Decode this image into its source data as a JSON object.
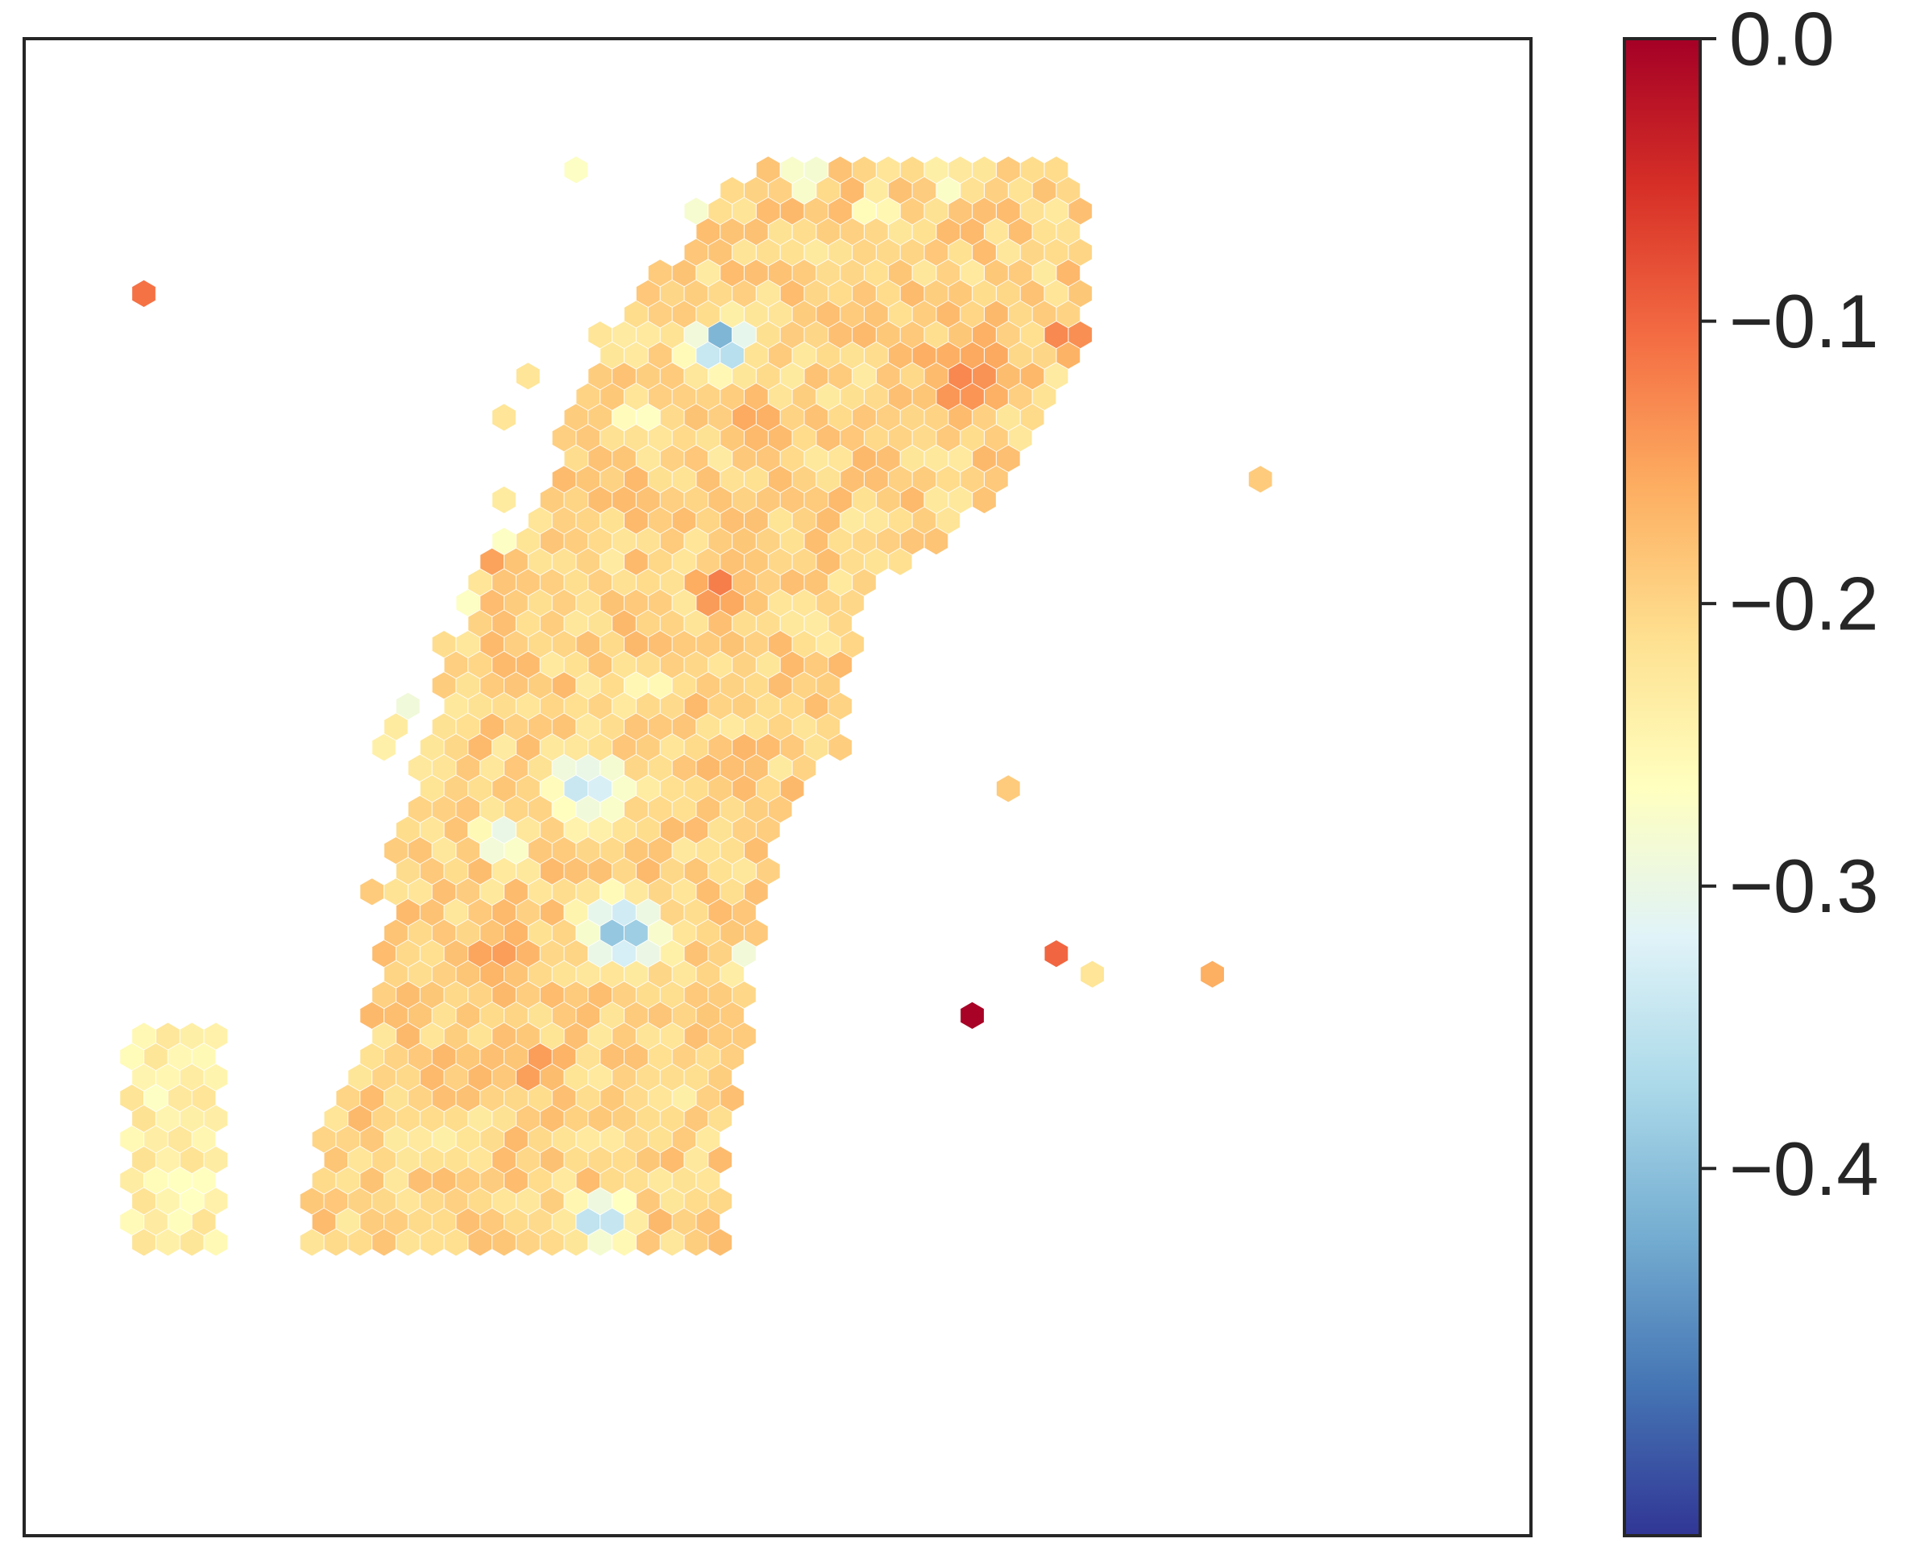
{
  "chart_data": {
    "type": "heatmap",
    "subtype": "hexbin spatial scatter",
    "title": "",
    "xlabel": "",
    "ylabel": "",
    "axes_ticks_visible": false,
    "grid": false,
    "legend": "none",
    "colormap": {
      "name": "RdYlBu_r",
      "stops": [
        "#313695",
        "#4575b4",
        "#74add1",
        "#abd9e9",
        "#e0f3f8",
        "#ffffbf",
        "#fee090",
        "#fdae61",
        "#f46d43",
        "#d73027",
        "#a50026"
      ]
    },
    "colorbar": {
      "placement": "right",
      "vmin": -0.53,
      "vmax": 0.0,
      "ticks": [
        {
          "value": 0.0,
          "label": "0.0"
        },
        {
          "value": -0.1,
          "label": "−0.1"
        },
        {
          "value": -0.2,
          "label": "−0.2"
        },
        {
          "value": -0.3,
          "label": "−0.3"
        },
        {
          "value": -0.4,
          "label": "−0.4"
        }
      ]
    },
    "field": {
      "background_value": -0.2,
      "spot_grid": {
        "columns": 57,
        "rows": 64
      },
      "tissue_outline": [
        [
          28,
          3
        ],
        [
          41,
          3
        ],
        [
          42,
          6
        ],
        [
          42,
          12
        ],
        [
          40,
          16
        ],
        [
          37,
          20
        ],
        [
          33,
          23
        ],
        [
          32,
          27
        ],
        [
          32,
          31
        ],
        [
          30,
          33
        ],
        [
          29,
          36
        ],
        [
          28,
          42
        ],
        [
          27,
          50
        ],
        [
          27,
          56
        ],
        [
          9,
          56
        ],
        [
          10,
          50
        ],
        [
          12,
          44
        ],
        [
          13,
          36
        ],
        [
          15,
          28
        ],
        [
          18,
          22
        ],
        [
          20,
          16
        ],
        [
          22,
          12
        ],
        [
          24,
          8
        ],
        [
          26,
          5
        ]
      ],
      "hotspots": [
        {
          "x": 26.5,
          "y": 11.5,
          "r": 1.8,
          "value": -0.47
        },
        {
          "x": 23.0,
          "y": 15.3,
          "r": 0.8,
          "value": -0.42
        },
        {
          "x": 30.0,
          "y": 3.3,
          "r": 1.2,
          "value": -0.36
        },
        {
          "x": 36.0,
          "y": 3.5,
          "r": 1.0,
          "value": -0.37
        },
        {
          "x": 33.0,
          "y": 5.0,
          "r": 1.0,
          "value": -0.33
        },
        {
          "x": 42.5,
          "y": 10.0,
          "r": 0.8,
          "value": -0.36
        },
        {
          "x": 23.5,
          "y": 28.0,
          "r": 1.0,
          "value": -0.32
        },
        {
          "x": 21.0,
          "y": 33.0,
          "r": 2.6,
          "value": -0.36
        },
        {
          "x": 17.5,
          "y": 35.5,
          "r": 1.6,
          "value": -0.34
        },
        {
          "x": 22.5,
          "y": 40.0,
          "r": 2.4,
          "value": -0.44
        },
        {
          "x": 28.0,
          "y": 41.5,
          "r": 1.2,
          "value": -0.4
        },
        {
          "x": 30.0,
          "y": 53.5,
          "r": 2.2,
          "value": -0.37
        },
        {
          "x": 21.5,
          "y": 54.0,
          "r": 1.8,
          "value": -0.4
        },
        {
          "x": 31.5,
          "y": 50.5,
          "r": 1.0,
          "value": -0.38
        },
        {
          "x": 37.0,
          "y": 13.0,
          "r": 2.6,
          "value": -0.11
        },
        {
          "x": 41.0,
          "y": 11.0,
          "r": 1.2,
          "value": -0.09
        },
        {
          "x": 26.5,
          "y": 23.5,
          "r": 1.6,
          "value": -0.11
        },
        {
          "x": 17.0,
          "y": 41.0,
          "r": 1.8,
          "value": -0.12
        },
        {
          "x": 19.0,
          "y": 46.5,
          "r": 1.4,
          "value": -0.12
        },
        {
          "x": 28.0,
          "y": 15.5,
          "r": 2.0,
          "value": -0.15
        },
        {
          "x": 27.0,
          "y": 32.0,
          "r": 2.0,
          "value": -0.17
        },
        {
          "x": 15.0,
          "y": 50.0,
          "r": 2.0,
          "value": -0.22
        },
        {
          "x": 25.0,
          "y": 48.0,
          "r": 1.5,
          "value": -0.24
        }
      ],
      "left_strip": {
        "outline": [
          [
            2,
            45
          ],
          [
            6,
            45
          ],
          [
            6,
            56
          ],
          [
            2,
            56
          ]
        ],
        "value": -0.24
      },
      "scattered_spots": [
        {
          "x": 2.5,
          "y": 9.4,
          "value": -0.11
        },
        {
          "x": 25.3,
          "y": 5.0,
          "value": -0.28
        },
        {
          "x": 20.0,
          "y": 3.3,
          "value": -0.27
        },
        {
          "x": 21.0,
          "y": 10.5,
          "value": -0.22
        },
        {
          "x": 18.5,
          "y": 12.5,
          "value": -0.22
        },
        {
          "x": 17.8,
          "y": 15.3,
          "value": -0.22
        },
        {
          "x": 17.0,
          "y": 19.2,
          "value": -0.23
        },
        {
          "x": 17.0,
          "y": 20.8,
          "value": -0.27
        },
        {
          "x": 16.7,
          "y": 21.6,
          "value": -0.15
        },
        {
          "x": 16.2,
          "y": 23.3,
          "value": -0.22
        },
        {
          "x": 15.5,
          "y": 24.3,
          "value": -0.27
        },
        {
          "x": 14.5,
          "y": 26.4,
          "value": -0.21
        },
        {
          "x": 13.5,
          "y": 28.7,
          "value": -0.29
        },
        {
          "x": 12.5,
          "y": 30.3,
          "value": -0.23
        },
        {
          "x": 12.0,
          "y": 31.3,
          "value": -0.24
        },
        {
          "x": 11.5,
          "y": 37.5,
          "value": -0.19
        },
        {
          "x": 12.0,
          "y": 43.4,
          "value": -0.23
        },
        {
          "x": 12.0,
          "y": 45.4,
          "value": -0.27
        },
        {
          "x": 12.0,
          "y": 48.3,
          "value": -0.23
        },
        {
          "x": 11.5,
          "y": 55.4,
          "value": -0.27
        },
        {
          "x": 48.5,
          "y": 18.4,
          "value": -0.19
        },
        {
          "x": 38.5,
          "y": 32.6,
          "value": -0.19
        },
        {
          "x": 40.2,
          "y": 40.5,
          "value": -0.1
        },
        {
          "x": 41.5,
          "y": 41.9,
          "value": -0.22
        },
        {
          "x": 36.7,
          "y": 43.6,
          "value": -0.003
        },
        {
          "x": 46.7,
          "y": 41.7,
          "value": -0.16
        }
      ]
    }
  }
}
